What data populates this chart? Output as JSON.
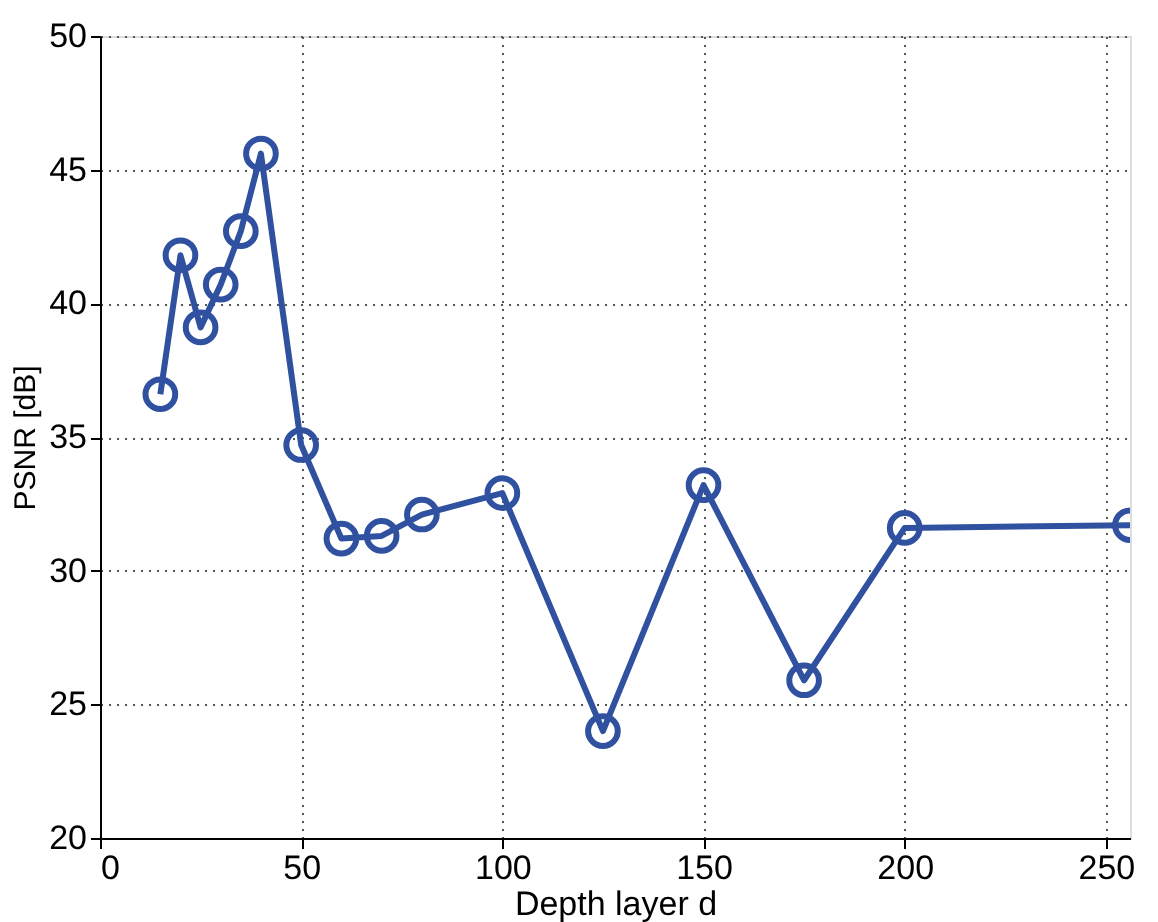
{
  "chart_data": {
    "type": "line",
    "xlabel": "Depth layer d",
    "ylabel": "PSNR [dB]",
    "x": [
      15,
      20,
      25,
      30,
      35,
      40,
      50,
      60,
      70,
      80,
      100,
      125,
      150,
      175,
      200,
      256
    ],
    "series": [
      {
        "color": "#3050a0",
        "values": [
          36.6,
          41.8,
          39.1,
          40.7,
          42.7,
          45.6,
          34.7,
          31.2,
          31.3,
          32.1,
          32.9,
          24.0,
          33.2,
          25.9,
          31.6,
          31.7
        ]
      }
    ],
    "xlim": [
      0,
      256
    ],
    "xticks": [
      0,
      50,
      100,
      150,
      200,
      250
    ],
    "ylim": [
      20,
      50
    ],
    "yticks": [
      20,
      25,
      30,
      35,
      40,
      45,
      50
    ],
    "grid": true,
    "marker": "circle",
    "line_style": "solid"
  }
}
